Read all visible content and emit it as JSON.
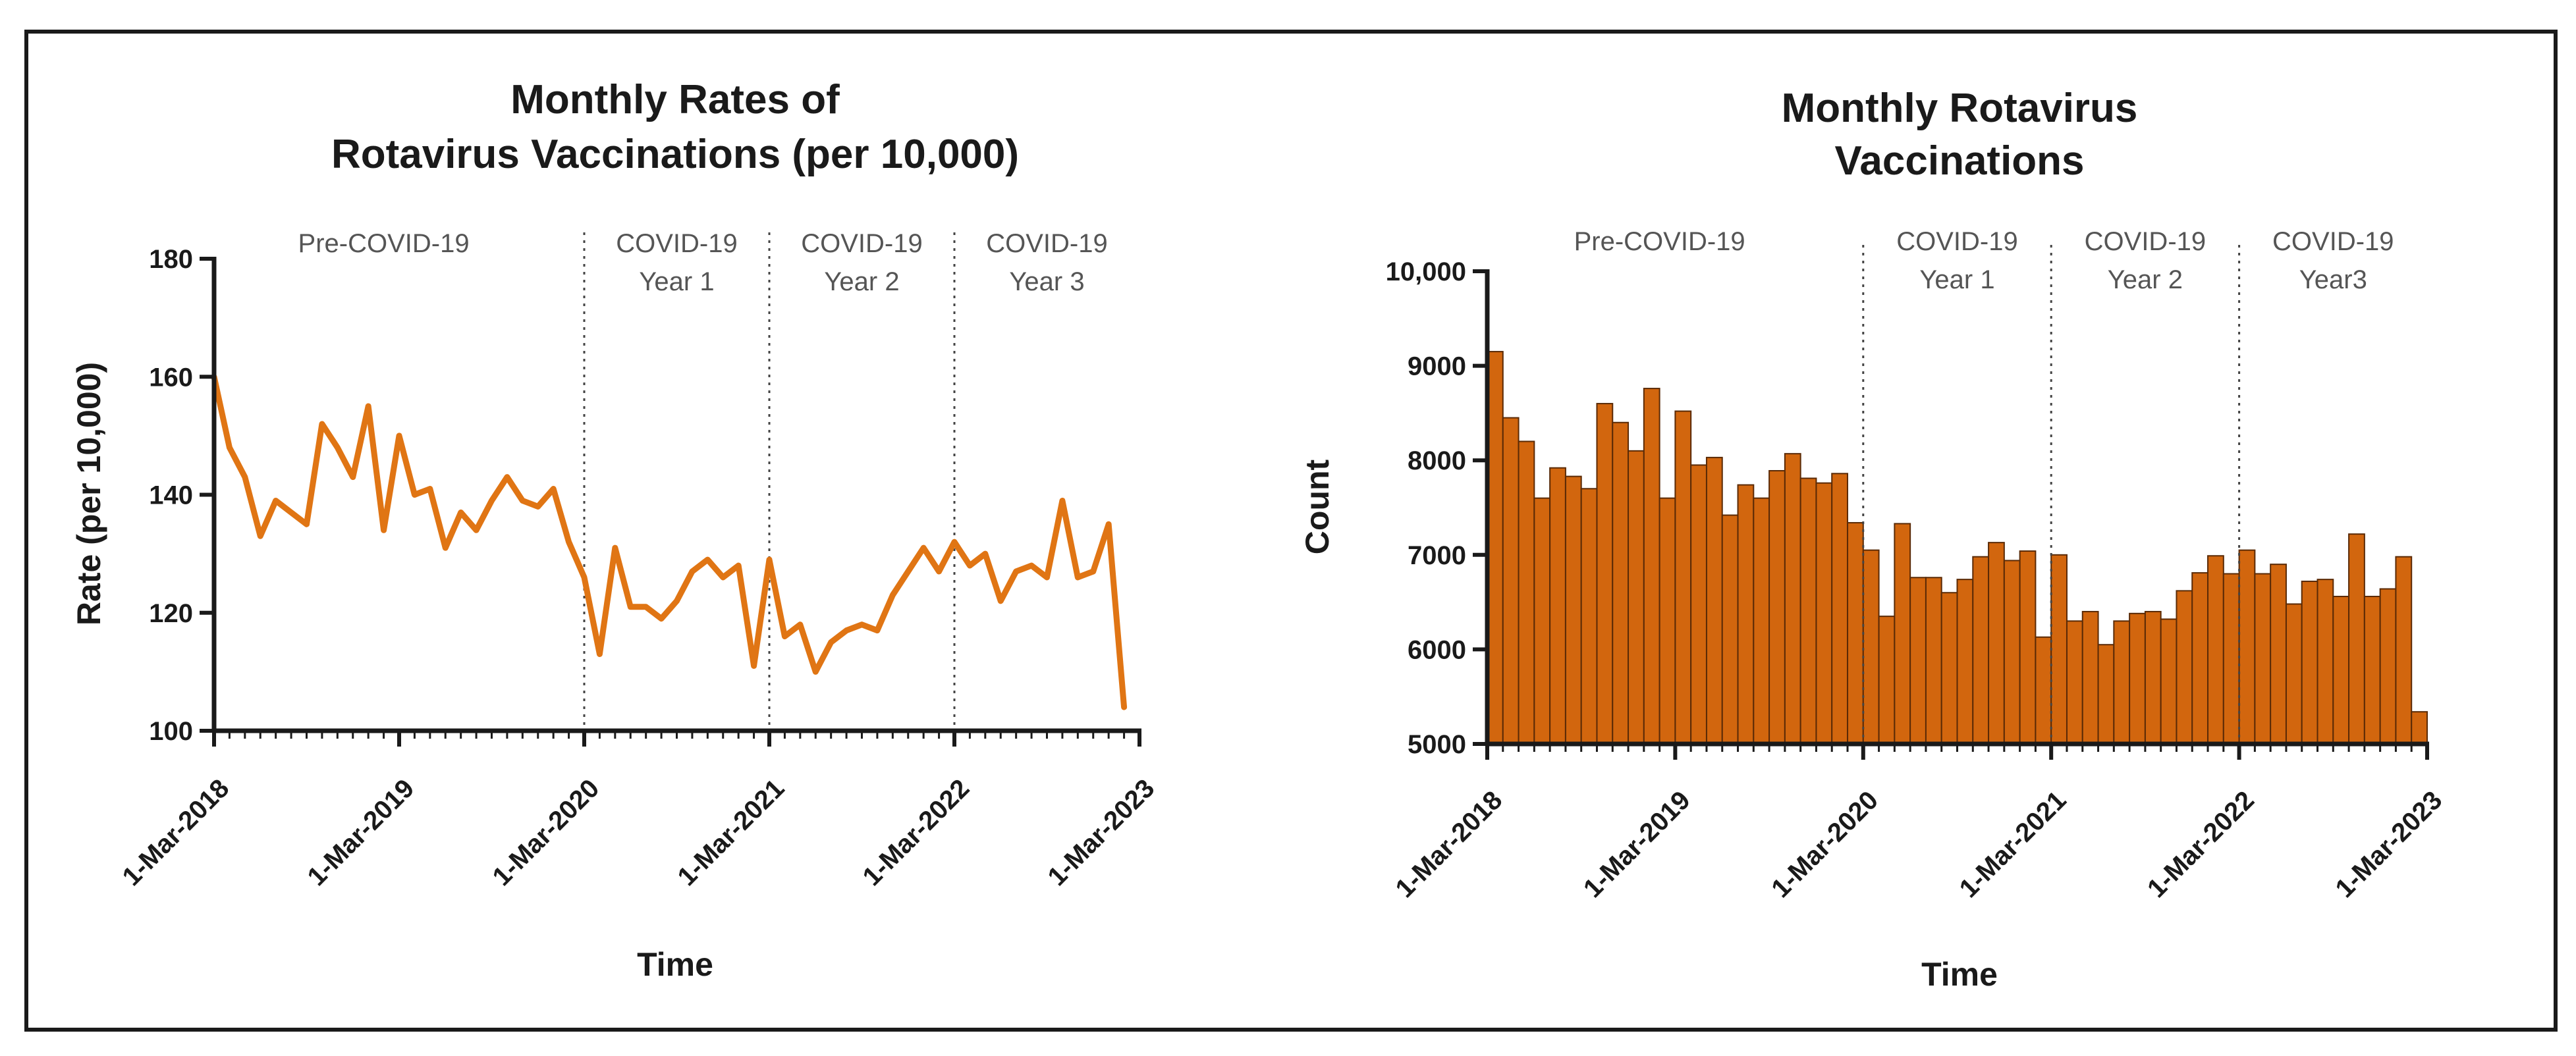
{
  "colors": {
    "line": "#E07514",
    "bar": "#D2660E",
    "bar_stroke": "#5a2a06",
    "axis": "#1a1a1a",
    "divider": "#444444",
    "period_text": "#555555"
  },
  "chart_data": [
    {
      "type": "line",
      "title": [
        "Monthly Rates of",
        "Rotavirus Vaccinations (per 10,000)"
      ],
      "xlabel": "Time",
      "ylabel": "Rate (per 10,000)",
      "ylim": [
        100,
        180
      ],
      "yticks": [
        100,
        120,
        140,
        160,
        180
      ],
      "xtick_labels": [
        "1-Mar-2018",
        "1-Mar-2019",
        "1-Mar-2020",
        "1-Mar-2021",
        "1-Mar-2022",
        "1-Mar-2023"
      ],
      "period_dividers_month_index": [
        24,
        36,
        48
      ],
      "periods": [
        {
          "lines": [
            "Pre-COVID-19"
          ],
          "center_month": 11
        },
        {
          "lines": [
            "COVID-19",
            "Year 1"
          ],
          "center_month": 30
        },
        {
          "lines": [
            "COVID-19",
            "Year 2"
          ],
          "center_month": 42
        },
        {
          "lines": [
            "COVID-19",
            "Year 3"
          ],
          "center_month": 54
        }
      ],
      "series": [
        {
          "name": "Rate",
          "values": [
            160,
            148,
            143,
            133,
            139,
            137,
            135,
            152,
            148,
            143,
            155,
            134,
            150,
            140,
            141,
            131,
            137,
            134,
            139,
            143,
            139,
            138,
            141,
            132,
            126,
            113,
            131,
            121,
            121,
            119,
            122,
            127,
            129,
            126,
            128,
            111,
            129,
            116,
            118,
            110,
            115,
            117,
            118,
            117,
            123,
            127,
            131,
            127,
            132,
            128,
            130,
            122,
            127,
            128,
            126,
            139,
            126,
            127,
            135,
            104
          ]
        }
      ]
    },
    {
      "type": "bar",
      "title": [
        "Monthly Rotavirus",
        "Vaccinations"
      ],
      "xlabel": "Time",
      "ylabel": "Count",
      "ylim": [
        5000,
        10000
      ],
      "yticks": [
        5000,
        6000,
        7000,
        8000,
        9000,
        10000
      ],
      "ytick_labels": [
        "5000",
        "6000",
        "7000",
        "8000",
        "9000",
        "10,000"
      ],
      "xtick_labels": [
        "1-Mar-2018",
        "1-Mar-2019",
        "1-Mar-2020",
        "1-Mar-2021",
        "1-Mar-2022",
        "1-Mar-2023"
      ],
      "period_dividers_month_index": [
        24,
        36,
        48
      ],
      "periods": [
        {
          "lines": [
            "Pre-COVID-19"
          ],
          "center_month": 11
        },
        {
          "lines": [
            "COVID-19",
            "Year 1"
          ],
          "center_month": 30
        },
        {
          "lines": [
            "COVID-19",
            "Year 2"
          ],
          "center_month": 42
        },
        {
          "lines": [
            "COVID-19",
            "Year3"
          ],
          "center_month": 54
        }
      ],
      "series": [
        {
          "name": "Count",
          "values": [
            9150,
            8450,
            8200,
            7600,
            7920,
            7830,
            7700,
            8600,
            8400,
            8100,
            8760,
            7600,
            8520,
            7950,
            8030,
            7420,
            7740,
            7600,
            7890,
            8070,
            7810,
            7760,
            7860,
            7340,
            7050,
            6350,
            7330,
            6760,
            6760,
            6600,
            6740,
            6980,
            7130,
            6940,
            7040,
            6130,
            7000,
            6300,
            6400,
            6050,
            6300,
            6380,
            6400,
            6320,
            6620,
            6810,
            6990,
            6800,
            7050,
            6800,
            6900,
            6480,
            6720,
            6740,
            6560,
            7220,
            6560,
            6640,
            6980,
            5340
          ]
        }
      ]
    }
  ]
}
